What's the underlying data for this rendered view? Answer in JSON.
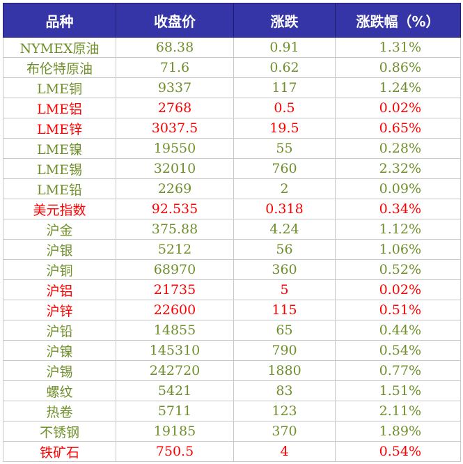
{
  "table": {
    "headers": [
      "品种",
      "收盘价",
      "涨跌",
      "涨跌幅（%）"
    ],
    "rows": [
      {
        "name": "NYMEX原油",
        "close": "68.38",
        "change": "0.91",
        "pct": "1.31%",
        "color": "#6f8f2b"
      },
      {
        "name": "布伦特原油",
        "close": "71.6",
        "change": "0.62",
        "pct": "0.86%",
        "color": "#6f8f2b"
      },
      {
        "name": "LME铜",
        "close": "9337",
        "change": "117",
        "pct": "1.24%",
        "color": "#6f8f2b"
      },
      {
        "name": "LME铝",
        "close": "2768",
        "change": "0.5",
        "pct": "0.02%",
        "color": "#ff0000"
      },
      {
        "name": "LME锌",
        "close": "3037.5",
        "change": "19.5",
        "pct": "0.65%",
        "color": "#ff0000"
      },
      {
        "name": "LME镍",
        "close": "19550",
        "change": "55",
        "pct": "0.28%",
        "color": "#6f8f2b"
      },
      {
        "name": "LME锡",
        "close": "32010",
        "change": "760",
        "pct": "2.32%",
        "color": "#6f8f2b"
      },
      {
        "name": "LME铅",
        "close": "2269",
        "change": "2",
        "pct": "0.09%",
        "color": "#6f8f2b"
      },
      {
        "name": "美元指数",
        "close": "92.535",
        "change": "0.318",
        "pct": "0.34%",
        "color": "#ff0000"
      },
      {
        "name": "沪金",
        "close": "375.88",
        "change": "4.24",
        "pct": "1.12%",
        "color": "#6f8f2b"
      },
      {
        "name": "沪银",
        "close": "5212",
        "change": "56",
        "pct": "1.06%",
        "color": "#6f8f2b"
      },
      {
        "name": "沪铜",
        "close": "68970",
        "change": "360",
        "pct": "0.52%",
        "color": "#6f8f2b"
      },
      {
        "name": "沪铝",
        "close": "21735",
        "change": "5",
        "pct": "0.02%",
        "color": "#ff0000"
      },
      {
        "name": "沪锌",
        "close": "22600",
        "change": "115",
        "pct": "0.51%",
        "color": "#ff0000"
      },
      {
        "name": "沪铅",
        "close": "14855",
        "change": "65",
        "pct": "0.44%",
        "color": "#6f8f2b"
      },
      {
        "name": "沪镍",
        "close": "145310",
        "change": "790",
        "pct": "0.54%",
        "color": "#6f8f2b"
      },
      {
        "name": "沪锡",
        "close": "242720",
        "change": "1880",
        "pct": "0.77%",
        "color": "#6f8f2b"
      },
      {
        "name": "螺纹",
        "close": "5421",
        "change": "83",
        "pct": "1.51%",
        "color": "#6f8f2b"
      },
      {
        "name": "热卷",
        "close": "5711",
        "change": "123",
        "pct": "2.11%",
        "color": "#6f8f2b"
      },
      {
        "name": "不锈钢",
        "close": "19185",
        "change": "370",
        "pct": "1.89%",
        "color": "#6f8f2b"
      },
      {
        "name": "铁矿石",
        "close": "750.5",
        "change": "4",
        "pct": "0.54%",
        "color": "#ff0000"
      }
    ]
  }
}
